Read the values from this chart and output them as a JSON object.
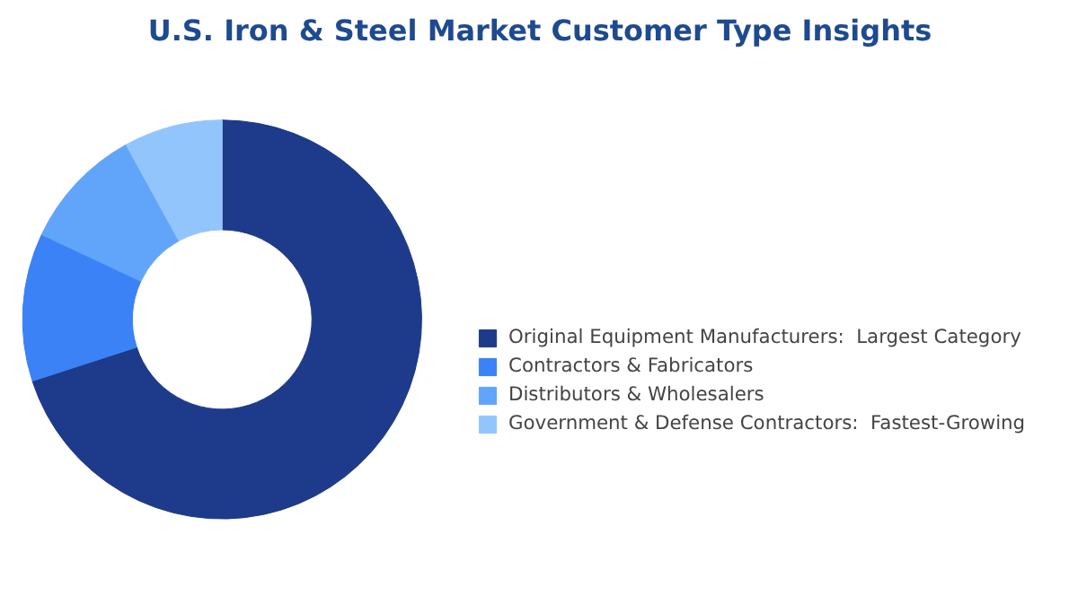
{
  "chart_data": {
    "type": "donut",
    "title": "U.S. Iron & Steel Market Customer Type Insights",
    "categories": [
      "Original Equipment Manufacturers:  Largest Category",
      "Contractors & Fabricators",
      "Distributors & Wholesalers",
      "Government & Defense Contractors:  Fastest-Growing"
    ],
    "values": [
      70,
      12,
      10,
      8
    ],
    "colors": [
      "#1e3a8a",
      "#3b82f6",
      "#60a5fa",
      "#93c5fd"
    ],
    "legend": "right"
  }
}
